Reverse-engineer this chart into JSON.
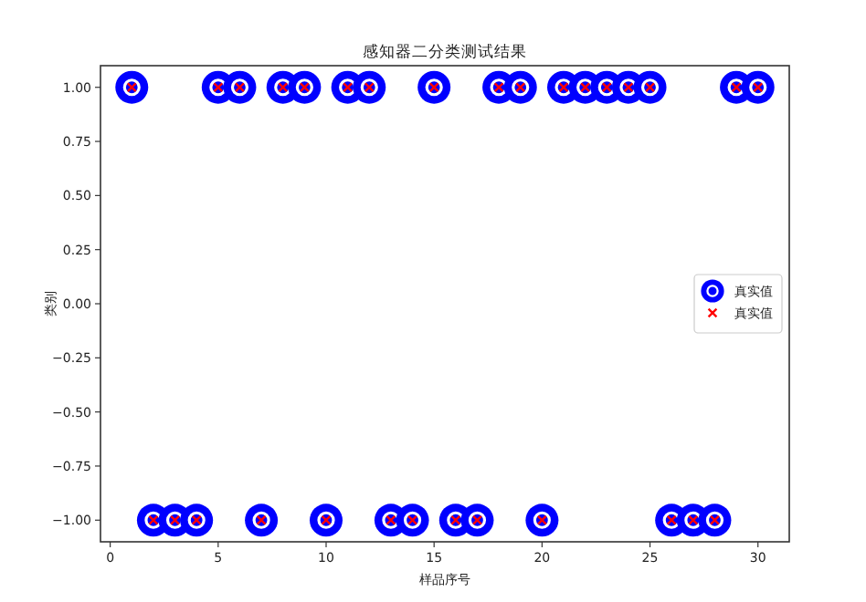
{
  "chart_data": {
    "type": "scatter",
    "title": "感知器二分类测试结果",
    "xlabel": "样品序号",
    "ylabel": "类别",
    "x": [
      1,
      2,
      3,
      4,
      5,
      6,
      7,
      8,
      9,
      10,
      11,
      12,
      13,
      14,
      15,
      16,
      17,
      18,
      19,
      20,
      21,
      22,
      23,
      24,
      25,
      26,
      27,
      28,
      29,
      30
    ],
    "series": [
      {
        "name": "真实值",
        "color": "#0000ff",
        "marker": "circle",
        "values": [
          1,
          -1,
          -1,
          -1,
          1,
          1,
          -1,
          1,
          1,
          -1,
          1,
          1,
          -1,
          -1,
          1,
          -1,
          -1,
          1,
          1,
          -1,
          1,
          1,
          1,
          1,
          1,
          -1,
          -1,
          -1,
          1,
          1
        ]
      },
      {
        "name": "真实值",
        "color": "#ff0000",
        "marker": "cross",
        "values": [
          1,
          -1,
          -1,
          -1,
          1,
          1,
          -1,
          1,
          1,
          -1,
          1,
          1,
          -1,
          -1,
          1,
          -1,
          -1,
          1,
          1,
          -1,
          1,
          1,
          1,
          1,
          1,
          -1,
          -1,
          -1,
          1,
          1
        ]
      }
    ],
    "xlim": [
      -0.45,
      31.45
    ],
    "ylim": [
      -1.1,
      1.1
    ],
    "xticks": [
      0,
      5,
      10,
      15,
      20,
      25,
      30
    ],
    "yticks": [
      {
        "value": -1,
        "label": "−1.00"
      },
      {
        "value": -0.75,
        "label": "−0.75"
      },
      {
        "value": -0.5,
        "label": "−0.50"
      },
      {
        "value": -0.25,
        "label": "−0.25"
      },
      {
        "value": 0,
        "label": "0.00"
      },
      {
        "value": 0.25,
        "label": "0.25"
      },
      {
        "value": 0.5,
        "label": "0.50"
      },
      {
        "value": 0.75,
        "label": "0.75"
      },
      {
        "value": 1,
        "label": "1.00"
      }
    ],
    "legend": "right",
    "grid": false
  }
}
